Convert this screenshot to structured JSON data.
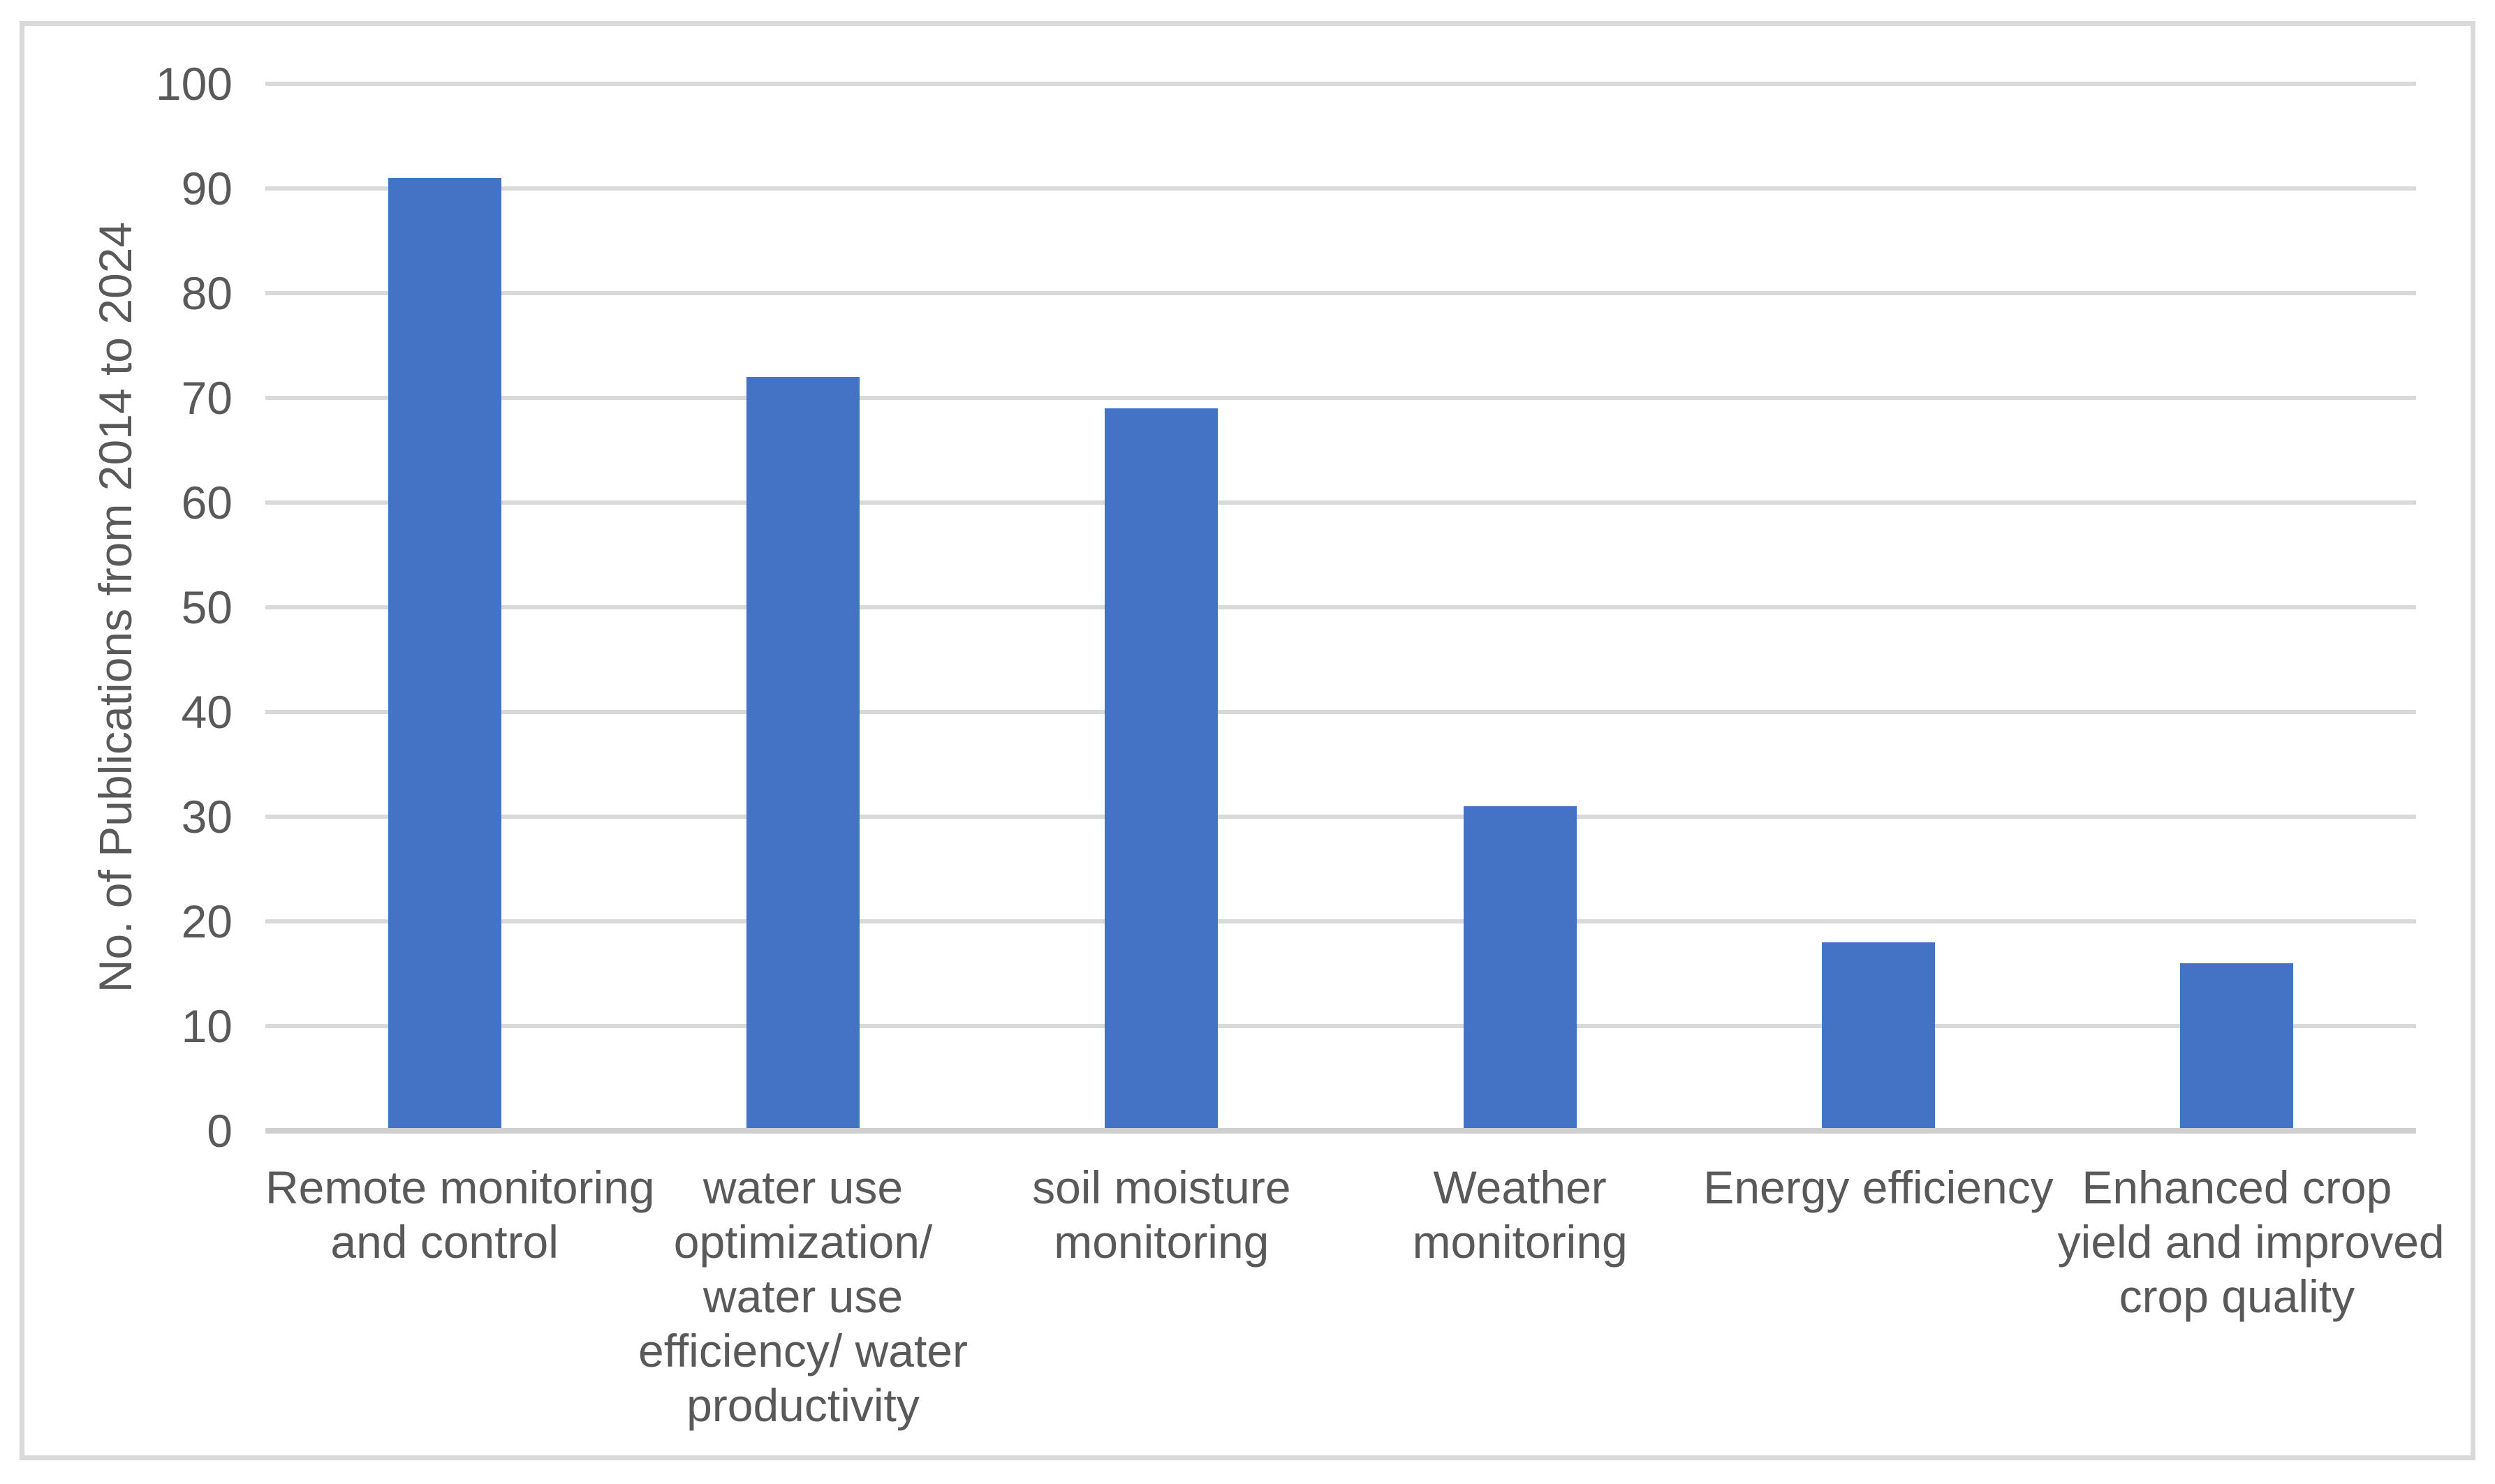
{
  "chart_data": {
    "type": "bar",
    "title": "",
    "categories": [
      "Remote monitoring and control",
      "water use optimization/ water use efficiency/ water productivity",
      "soil moisture monitoring",
      "Weather monitoring",
      "Energy efficiency",
      "Enhanced crop yield and improved crop quality"
    ],
    "categories_wrapped": [
      "Remote monitoring\nand control",
      "water use\noptimization/\nwater use\nefficiency/ water\nproductivity",
      "soil moisture\nmonitoring",
      "Weather\nmonitoring",
      "Energy efficiency",
      "Enhanced crop\nyield and improved\ncrop quality"
    ],
    "values": [
      91,
      72,
      69,
      31,
      18,
      16
    ],
    "xlabel": "",
    "ylabel": "No. of Publications from 2014 to 2024",
    "ylim": [
      0,
      100
    ],
    "yticks": [
      0,
      10,
      20,
      30,
      40,
      50,
      60,
      70,
      80,
      90,
      100
    ],
    "grid": "horizontal",
    "legend_position": "none",
    "colors": {
      "bar": "#4472C4",
      "gridline": "#D9D9D9",
      "axis_line": "#CFCFCF",
      "text": "#595959",
      "frame_border": "#D9D9D9",
      "background": "#FFFFFF"
    }
  }
}
